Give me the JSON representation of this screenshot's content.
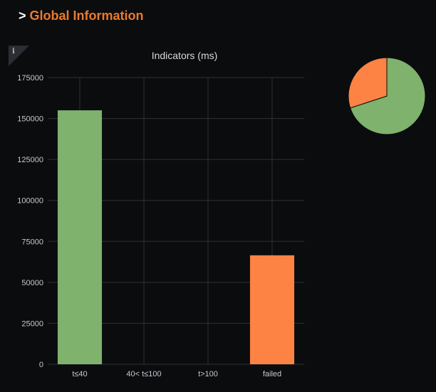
{
  "header": {
    "prefix": ">",
    "title": "Global Information"
  },
  "panel": {
    "info_icon": "info-icon",
    "info_glyph": "i"
  },
  "chart_data": [
    {
      "type": "bar",
      "title": "Indicators (ms)",
      "categories": [
        "t≤40",
        "40< t≤100",
        "t>100",
        "failed"
      ],
      "values": [
        155000,
        0,
        0,
        66500
      ],
      "colors": [
        "#7eb26d",
        "#7eb26d",
        "#7eb26d",
        "#fc8343"
      ],
      "xlabel": "",
      "ylabel": "",
      "ylim": [
        0,
        175000
      ],
      "yticks": [
        0,
        25000,
        50000,
        75000,
        100000,
        125000,
        150000,
        175000
      ],
      "grid": true,
      "legend": "none"
    },
    {
      "type": "pie",
      "labels": [
        "t≤40",
        "40< t≤100",
        "t>100",
        "failed"
      ],
      "values": [
        155000,
        0,
        0,
        66500
      ],
      "colors": [
        "#7eb26d",
        "#eab839",
        "#6ed0e0",
        "#fc8343"
      ],
      "legend": "none"
    }
  ],
  "theme": {
    "background": "#0b0c0e",
    "accent": "#ec7a2c",
    "grid": "#2f3036",
    "axis_text": "#c7c8ce",
    "title_text": "#d8d9de"
  }
}
